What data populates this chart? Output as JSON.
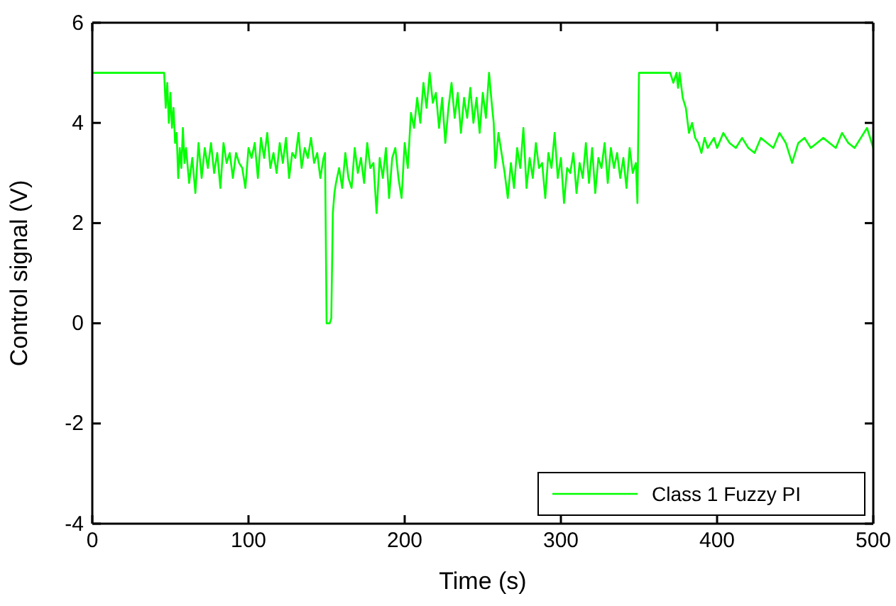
{
  "chart_data": {
    "type": "line",
    "xlabel": "Time (s)",
    "ylabel": "Control signal (V)",
    "xlim": [
      0,
      500
    ],
    "ylim": [
      -4,
      6
    ],
    "xticks": [
      0,
      100,
      200,
      300,
      400,
      500
    ],
    "yticks": [
      -4,
      -2,
      0,
      2,
      4,
      6
    ],
    "grid": false,
    "legend": "bottom right",
    "marker": "none",
    "line_style": "solid",
    "series": [
      {
        "name": "Class 1 Fuzzy PI",
        "color": "#00ff00",
        "x": [
          0,
          46,
          47,
          48,
          49,
          50,
          51,
          52,
          53,
          54,
          55,
          56,
          57,
          58,
          59,
          60,
          62,
          64,
          66,
          68,
          70,
          72,
          74,
          76,
          78,
          80,
          82,
          84,
          86,
          88,
          90,
          92,
          94,
          96,
          98,
          100,
          102,
          104,
          106,
          108,
          110,
          112,
          114,
          116,
          118,
          120,
          122,
          124,
          126,
          128,
          130,
          132,
          134,
          136,
          138,
          140,
          142,
          144,
          146,
          148,
          149,
          150,
          152,
          153,
          154,
          155,
          156,
          158,
          160,
          162,
          164,
          166,
          168,
          170,
          172,
          174,
          176,
          178,
          180,
          182,
          184,
          186,
          188,
          190,
          192,
          194,
          196,
          198,
          200,
          202,
          204,
          206,
          208,
          210,
          212,
          214,
          216,
          218,
          220,
          222,
          224,
          226,
          228,
          230,
          232,
          234,
          236,
          238,
          240,
          242,
          244,
          246,
          248,
          250,
          252,
          254,
          256,
          257,
          258,
          260,
          262,
          264,
          266,
          268,
          270,
          272,
          274,
          276,
          278,
          280,
          282,
          284,
          286,
          288,
          290,
          292,
          294,
          296,
          298,
          300,
          302,
          304,
          306,
          308,
          310,
          312,
          314,
          316,
          318,
          320,
          322,
          324,
          326,
          328,
          330,
          332,
          334,
          336,
          338,
          340,
          342,
          344,
          346,
          348,
          349,
          350,
          356,
          362,
          368,
          370,
          372,
          374,
          375,
          376,
          378,
          380,
          382,
          384,
          386,
          388,
          390,
          392,
          394,
          396,
          398,
          400,
          404,
          408,
          412,
          416,
          420,
          424,
          428,
          432,
          436,
          440,
          444,
          448,
          452,
          456,
          460,
          464,
          468,
          472,
          476,
          480,
          484,
          488,
          492,
          496,
          500
        ],
        "values": [
          5,
          5,
          4.3,
          4.8,
          4.0,
          4.6,
          3.9,
          4.3,
          3.6,
          3.8,
          2.9,
          3.5,
          3.1,
          3.9,
          3.2,
          3.5,
          2.8,
          3.3,
          2.6,
          3.6,
          2.9,
          3.5,
          3.1,
          3.6,
          3.0,
          3.4,
          2.7,
          3.6,
          3.2,
          3.4,
          2.9,
          3.4,
          3.2,
          3.1,
          2.7,
          3.5,
          3.3,
          3.6,
          2.9,
          3.7,
          3.3,
          3.8,
          3.1,
          3.4,
          3.0,
          3.6,
          3.2,
          3.7,
          2.9,
          3.4,
          3.3,
          3.8,
          3.1,
          3.5,
          3.3,
          3.7,
          3.2,
          3.4,
          2.9,
          3.3,
          3.4,
          0,
          0,
          0.1,
          2.2,
          2.6,
          2.8,
          3.1,
          2.7,
          3.4,
          2.9,
          2.7,
          3.5,
          3.0,
          3.3,
          2.8,
          3.6,
          3.1,
          3.2,
          2.2,
          3.3,
          2.9,
          3.5,
          2.5,
          3.3,
          3.5,
          2.9,
          2.5,
          3.6,
          3.1,
          4.2,
          3.9,
          4.5,
          4.0,
          4.8,
          4.3,
          5.0,
          4.4,
          4.6,
          3.9,
          4.5,
          3.6,
          4.3,
          4.8,
          4.1,
          4.6,
          3.8,
          4.5,
          4.1,
          4.7,
          4.0,
          4.5,
          3.8,
          4.6,
          4.1,
          5.0,
          4.3,
          4.0,
          3.1,
          3.8,
          3.4,
          3.0,
          2.5,
          3.2,
          2.7,
          3.5,
          3.1,
          3.9,
          2.7,
          3.3,
          2.9,
          3.6,
          3.1,
          3.2,
          2.5,
          3.4,
          3.1,
          3.8,
          2.9,
          3.3,
          2.4,
          3.1,
          3.0,
          3.4,
          2.6,
          3.2,
          2.9,
          3.6,
          2.8,
          3.5,
          2.6,
          3.3,
          3.1,
          3.6,
          2.8,
          3.5,
          3.1,
          3.4,
          2.9,
          3.3,
          2.7,
          3.5,
          3.0,
          3.2,
          2.4,
          5,
          5,
          5,
          5,
          5,
          4.8,
          5,
          4.7,
          5,
          4.5,
          4.3,
          3.8,
          4.0,
          3.7,
          3.6,
          3.4,
          3.7,
          3.5,
          3.6,
          3.7,
          3.5,
          3.8,
          3.6,
          3.5,
          3.7,
          3.5,
          3.4,
          3.7,
          3.6,
          3.5,
          3.8,
          3.6,
          3.2,
          3.6,
          3.7,
          3.5,
          3.6,
          3.7,
          3.6,
          3.5,
          3.8,
          3.6,
          3.5,
          3.7,
          3.9,
          3.5
        ]
      }
    ]
  }
}
